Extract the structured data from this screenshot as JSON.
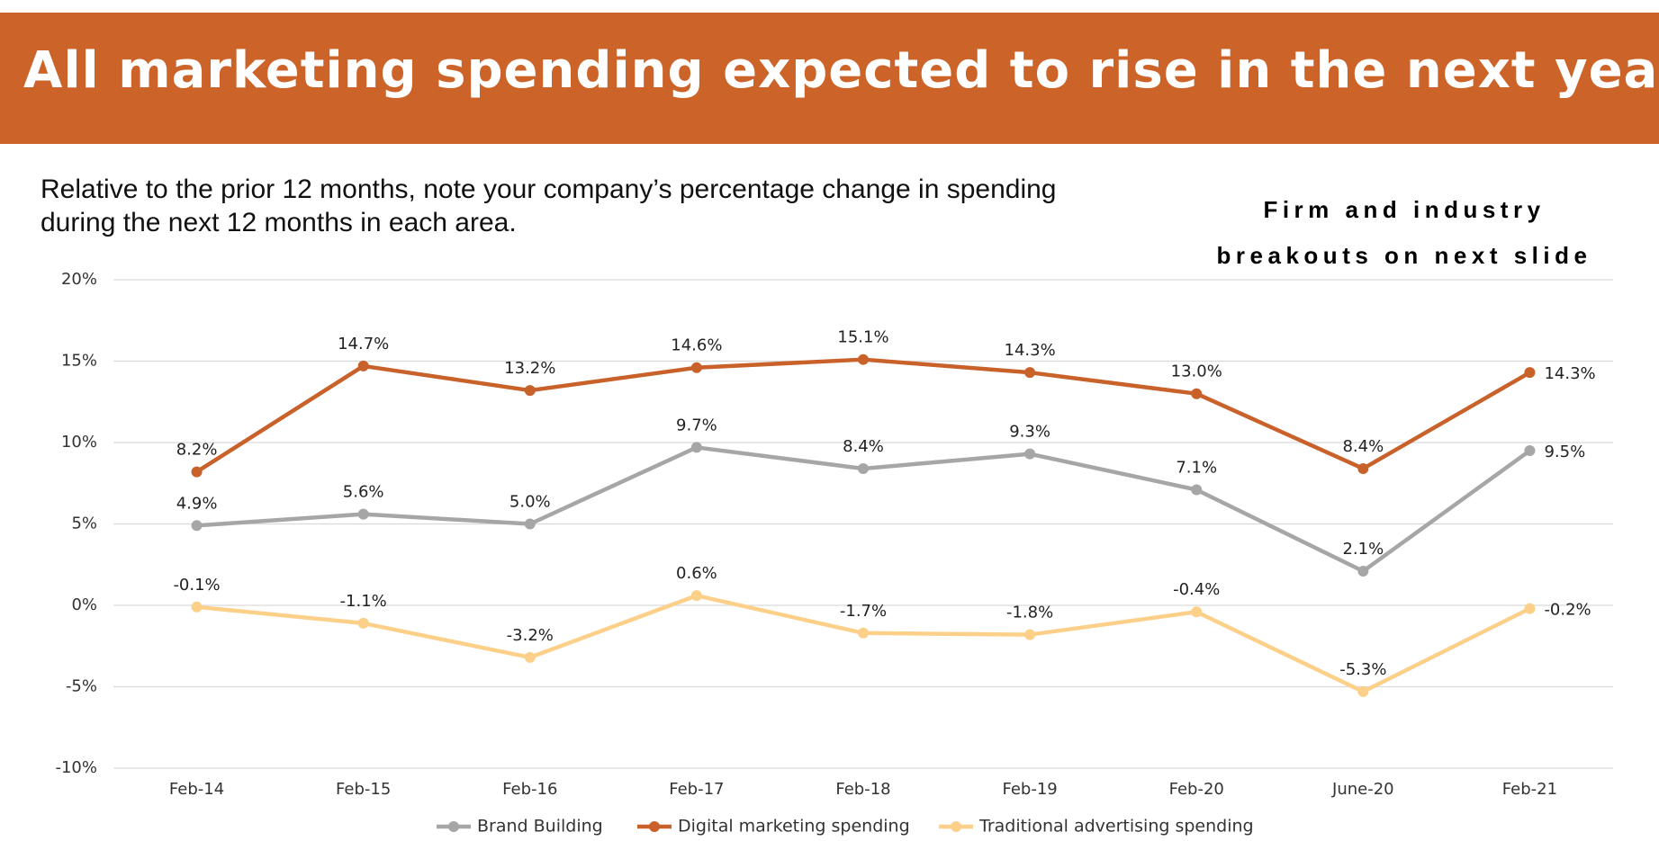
{
  "chart_data": {
    "type": "line",
    "title": "All marketing spending expected to rise in the next year",
    "subtitle": "Relative to the prior 12 months, note your company’s percentage change in spending during the next 12 months in each area.",
    "note": "Firm and industry breakouts on next slide",
    "categories": [
      "Feb-14",
      "Feb-15",
      "Feb-16",
      "Feb-17",
      "Feb-18",
      "Feb-19",
      "Feb-20",
      "June-20",
      "Feb-21"
    ],
    "series": [
      {
        "name": "Brand Building",
        "color": "#a6a6a6",
        "values": [
          4.9,
          5.6,
          5.0,
          9.7,
          8.4,
          9.3,
          7.1,
          2.1,
          9.5
        ],
        "value_labels": [
          "4.9%",
          "5.6%",
          "5.0%",
          "9.7%",
          "8.4%",
          "9.3%",
          "7.1%",
          "2.1%",
          "9.5%"
        ]
      },
      {
        "name": "Digital marketing spending",
        "color": "#c9622a",
        "values": [
          8.2,
          14.7,
          13.2,
          14.6,
          15.1,
          14.3,
          13.0,
          8.4,
          14.3
        ],
        "value_labels": [
          "8.2%",
          "14.7%",
          "13.2%",
          "14.6%",
          "15.1%",
          "14.3%",
          "13.0%",
          "8.4%",
          "14.3%"
        ]
      },
      {
        "name": "Traditional advertising spending",
        "color": "#fdd08a",
        "values": [
          -0.1,
          -1.1,
          -3.2,
          0.6,
          -1.7,
          -1.8,
          -0.4,
          -5.3,
          -0.2
        ],
        "value_labels": [
          "-0.1%",
          "-1.1%",
          "-3.2%",
          "0.6%",
          "-1.7%",
          "-1.8%",
          "-0.4%",
          "-5.3%",
          "-0.2%"
        ]
      }
    ],
    "ylim": [
      -10,
      20
    ],
    "yticks": [
      {
        "value": -10,
        "label": "-10%"
      },
      {
        "value": -5,
        "label": "-5%"
      },
      {
        "value": 0,
        "label": "0%"
      },
      {
        "value": 5,
        "label": "5%"
      },
      {
        "value": 10,
        "label": "10%"
      },
      {
        "value": 15,
        "label": "15%"
      },
      {
        "value": 20,
        "label": "20%"
      }
    ],
    "grid": true,
    "legend": "bottom"
  }
}
